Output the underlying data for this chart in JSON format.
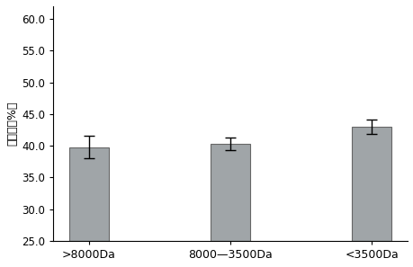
{
  "categories": [
    ">8000Da",
    "8000—3500Da",
    "<3500Da"
  ],
  "values": [
    39.8,
    40.3,
    43.0
  ],
  "errors": [
    1.8,
    1.0,
    1.2
  ],
  "bar_color": "#a0a5a8",
  "bar_edgecolor": "#666666",
  "bar_width": 0.28,
  "ylabel": "清除率（%）",
  "ylim": [
    25.0,
    62.0
  ],
  "yticks": [
    25.0,
    30.0,
    35.0,
    40.0,
    45.0,
    50.0,
    55.0,
    60.0
  ],
  "background_color": "#ffffff",
  "capsize": 4,
  "linewidth": 0.8,
  "tick_fontsize": 8.5,
  "ylabel_fontsize": 9,
  "xlabel_fontsize": 9
}
